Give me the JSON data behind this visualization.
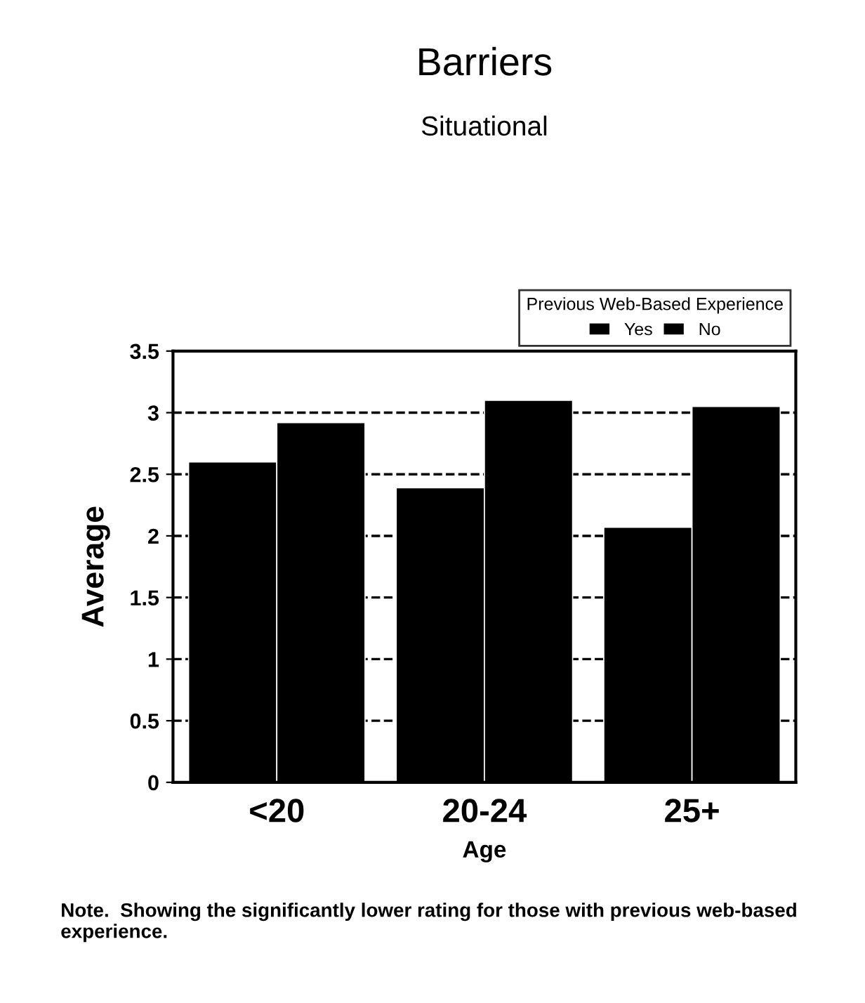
{
  "chart_data": {
    "type": "bar",
    "title": "Barriers",
    "subtitle": "Situational",
    "xlabel": "Age",
    "ylabel": "Average",
    "legend_title": "Previous Web-Based Experience",
    "categories": [
      "<20",
      "20-24",
      "25+"
    ],
    "series": [
      {
        "name": "Yes",
        "color": "#000000",
        "values": [
          2.6,
          2.39,
          2.07
        ]
      },
      {
        "name": "No",
        "color": "#000000",
        "values": [
          2.92,
          3.1,
          3.05
        ]
      }
    ],
    "ylim": [
      0,
      3.5
    ],
    "yticks": [
      0,
      0.5,
      1,
      1.5,
      2,
      2.5,
      3,
      3.5
    ],
    "grid": "y",
    "legend": "top right",
    "annotations": [
      "Note.  Showing the significantly lower rating for those with previous web-based experience."
    ]
  }
}
